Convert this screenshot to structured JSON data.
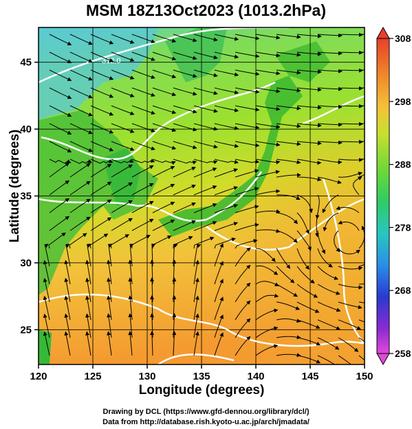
{
  "title": "MSM 18Z13Oct2023 (1013.2hPa)",
  "x_axis": {
    "label": "Longitude (degrees)",
    "range": [
      120,
      150
    ],
    "ticks": [
      120,
      125,
      130,
      135,
      140,
      145,
      150
    ]
  },
  "y_axis": {
    "label": "Latitude  (degrees)",
    "range": [
      22.4,
      47.6
    ],
    "ticks": [
      25,
      30,
      35,
      40,
      45
    ]
  },
  "colorbar": {
    "min": 258,
    "max": 308,
    "tick_labels": [
      "308",
      "298",
      "288",
      "278",
      "268",
      "258"
    ],
    "extend": "both"
  },
  "contour_label": "312.0",
  "credits": {
    "line1": "Drawing by DCL (https://www.gfd-dennou.org/library/dcl/)",
    "line2": "Data from http://database.rish.kyoto-u.ac.jp/arch/jmadata/"
  },
  "colors": {
    "sea_warm": "#f2a13a",
    "land": "#66cc44",
    "cold": "#55c0e0",
    "contour": "#ffffff",
    "streamline": "#000000"
  }
}
